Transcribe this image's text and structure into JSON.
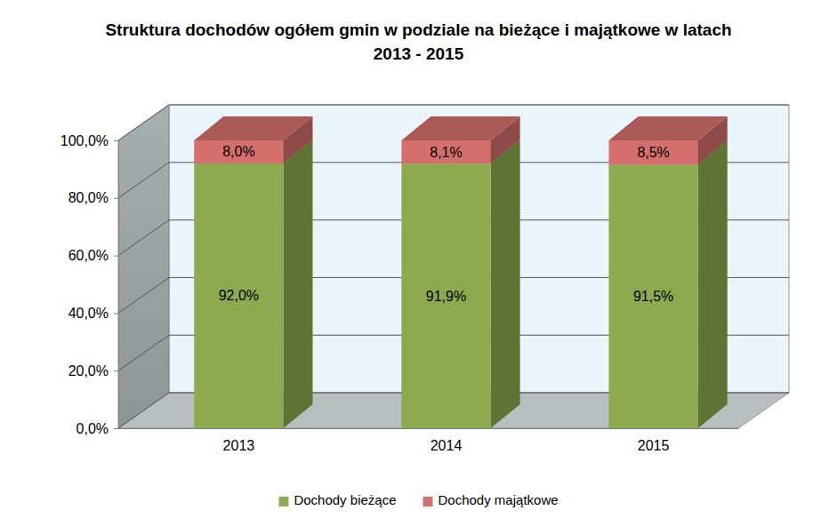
{
  "chart_data": {
    "type": "bar",
    "title": "Struktura dochodów ogółem gmin w podziale na bieżące i majątkowe w latach 2013 - 2015",
    "categories": [
      "2013",
      "2014",
      "2015"
    ],
    "series": [
      {
        "name": "Dochody bieżące",
        "color": "#8daa4f",
        "values": [
          92.0,
          91.9,
          91.5
        ],
        "value_labels": [
          "92,0%",
          "91,9%",
          "91,5%"
        ]
      },
      {
        "name": "Dochody majątkowe",
        "color": "#d46f6d",
        "values": [
          8.0,
          8.1,
          8.5
        ],
        "value_labels": [
          "8,0%",
          "8,1%",
          "8,5%"
        ]
      }
    ],
    "ylim": [
      0,
      100
    ],
    "yticks": [
      {
        "value": 0,
        "label": "0,0%"
      },
      {
        "value": 20,
        "label": "20,0%"
      },
      {
        "value": 40,
        "label": "40,0%"
      },
      {
        "value": 60,
        "label": "60,0%"
      },
      {
        "value": 80,
        "label": "80,0%"
      },
      {
        "value": 100,
        "label": "100,0%"
      }
    ],
    "stacked": true,
    "data_labels": true,
    "grid": true,
    "legend": "bottom"
  }
}
